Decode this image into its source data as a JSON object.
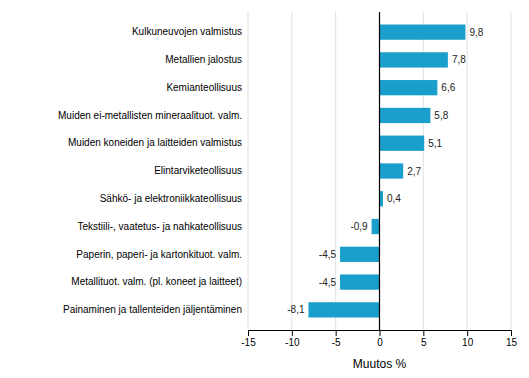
{
  "chart_data": {
    "type": "bar",
    "orientation": "horizontal",
    "categories": [
      "Painaminen ja tallenteiden jäljentäminen",
      "Metallituot. valm. (pl. koneet ja laitteet)",
      "Paperin, paperi- ja kartonkituot. valm.",
      "Tekstiili-, vaatetus- ja nahkateollisuus",
      "Sähkö- ja elektroniikkateollisuus",
      "Elintarviketeollisuus",
      "Muiden koneiden ja laitteiden valmistus",
      "Muiden ei-metallisten mineraalituot. valm.",
      "Kemianteollisuus",
      "Metallien jalostus",
      "Kulkuneuvojen valmistus"
    ],
    "values": [
      -8.1,
      -4.5,
      -4.5,
      -0.9,
      0.4,
      2.7,
      5.1,
      5.8,
      6.6,
      7.8,
      9.8
    ],
    "value_labels": [
      "-8,1",
      "-4,5",
      "-4,5",
      "-0,9",
      "0,4",
      "2,7",
      "5,1",
      "5,8",
      "6,6",
      "7,8",
      "9,8"
    ],
    "data_labels": true,
    "color": "#1a9fcc",
    "xlabel": "Muutos %",
    "xlim": [
      -15,
      15
    ],
    "xticks": [
      -15,
      -10,
      -5,
      0,
      5,
      10,
      15
    ],
    "grid": true
  }
}
